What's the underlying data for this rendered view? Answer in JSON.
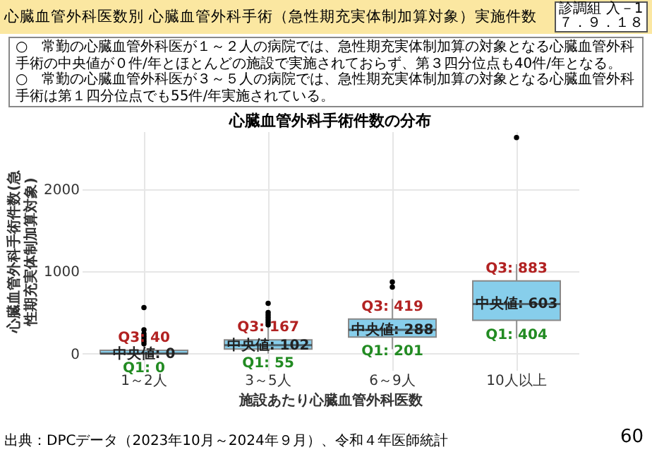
{
  "chart_data": {
    "type": "box",
    "title": "心臓血管外科医数別 心臓血管外科手術（急性期充実体制加算対象）実施件数",
    "subtitle": "心臓血管外科手術件数の分布",
    "xlabel": "施設あたり心臓血管外科医数",
    "ylabel": "心臓血管外科手術件数(急性期充実体制加算対象)",
    "categories": [
      "1～2人",
      "3～5人",
      "6～9人",
      "10人以上"
    ],
    "series": [
      {
        "color": "#87ceeb",
        "boxes": [
          {
            "low": 0,
            "q1": 0,
            "median": 0,
            "q3": 40,
            "high": 100,
            "outliers": [
              120,
              150,
              180,
              210,
              240,
              290,
              560
            ]
          },
          {
            "low": 0,
            "q1": 55,
            "median": 102,
            "q3": 167,
            "high": 335,
            "outliers": [
              350,
              380,
              410,
              440,
              470,
              500,
              610
            ]
          },
          {
            "low": 53,
            "q1": 201,
            "median": 288,
            "q3": 419,
            "high": 665,
            "outliers": [
              809,
              871
            ]
          },
          {
            "low": 183,
            "q1": 404,
            "median": 603,
            "q3": 883,
            "high": 1088,
            "outliers": [
              2625
            ]
          }
        ]
      }
    ],
    "ylim": [
      -200,
      2700
    ],
    "yticks": [
      0,
      1000,
      2000
    ],
    "grid": true,
    "annotations": [
      "診調組 入－1\n７．９．１８",
      "○　常勤の心臓血管外科医が１～２人の病院では、急性期充実体制加算の対象となる心臓血管外科手術の中央値が０件/年とほとんどの施設で実施されておらず、第３四分位点も40件/年となる。",
      "○　常勤の心臓血管外科医が３～５人の病院では、急性期充実体制加算の対象となる心臓血管外科手術は第１四分位点でも55件/年実施されている。",
      "出典：DPCデータ（2023年10月～2024年９月）、令和４年医師統計",
      "60",
      "Q3: 40",
      "中央値: 0",
      "Q1: 0",
      "Q3: 167",
      "中央値: 102",
      "Q1: 55",
      "Q3: 419",
      "中央値: 288",
      "Q1: 201",
      "Q3: 883",
      "中央値: 603",
      "Q1: 404"
    ]
  }
}
